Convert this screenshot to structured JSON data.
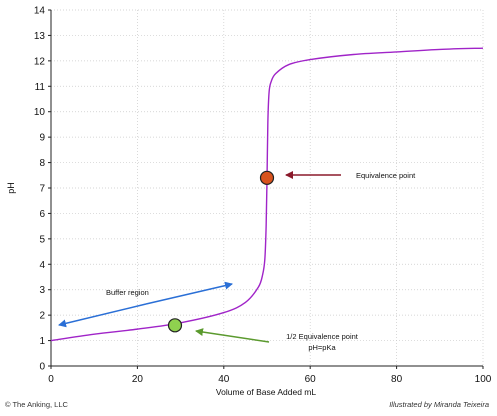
{
  "footer": {
    "copyright": "© The Anking, LLC",
    "credit": "Illustrated by Miranda Teixeira"
  },
  "chart_data": {
    "type": "line",
    "xlabel": "Volume of Base Added mL",
    "ylabel": "pH",
    "xlim": [
      0,
      100
    ],
    "ylim": [
      0,
      14
    ],
    "x_ticks": [
      0,
      20,
      40,
      60,
      80,
      100
    ],
    "y_ticks": [
      0,
      1,
      2,
      3,
      4,
      5,
      6,
      7,
      8,
      9,
      10,
      11,
      12,
      13,
      14
    ],
    "grid": true,
    "series": [
      {
        "color": "#a024c8",
        "x": [
          0,
          10,
          20,
          30,
          40,
          45,
          48,
          49,
          49.5,
          49.8,
          50,
          50.2,
          50.5,
          51,
          52,
          55,
          60,
          70,
          80,
          90,
          100
        ],
        "y": [
          1.0,
          1.25,
          1.45,
          1.7,
          2.1,
          2.5,
          3.1,
          3.6,
          4.2,
          5.5,
          7.3,
          9.6,
          10.8,
          11.2,
          11.5,
          11.85,
          12.05,
          12.25,
          12.35,
          12.45,
          12.5
        ]
      }
    ],
    "points": [
      {
        "name": "equivalence",
        "x": 50,
        "y": 7.4,
        "color": "#d9531e"
      },
      {
        "name": "half-equivalence",
        "x": 28.7,
        "y": 1.6,
        "color": "#8fd14f"
      }
    ],
    "annotations": [
      {
        "id": "equivalence",
        "lines": [
          "Equivalence point"
        ],
        "arrow_color": "#8b1a2b"
      },
      {
        "id": "half-equivalence",
        "lines": [
          "1/2 Equivalence point",
          "pH=pKa"
        ],
        "arrow_color": "#5b9a2e"
      },
      {
        "id": "buffer",
        "lines": [
          "Buffer region"
        ],
        "arrow_color": "#2a6fd6"
      }
    ]
  }
}
